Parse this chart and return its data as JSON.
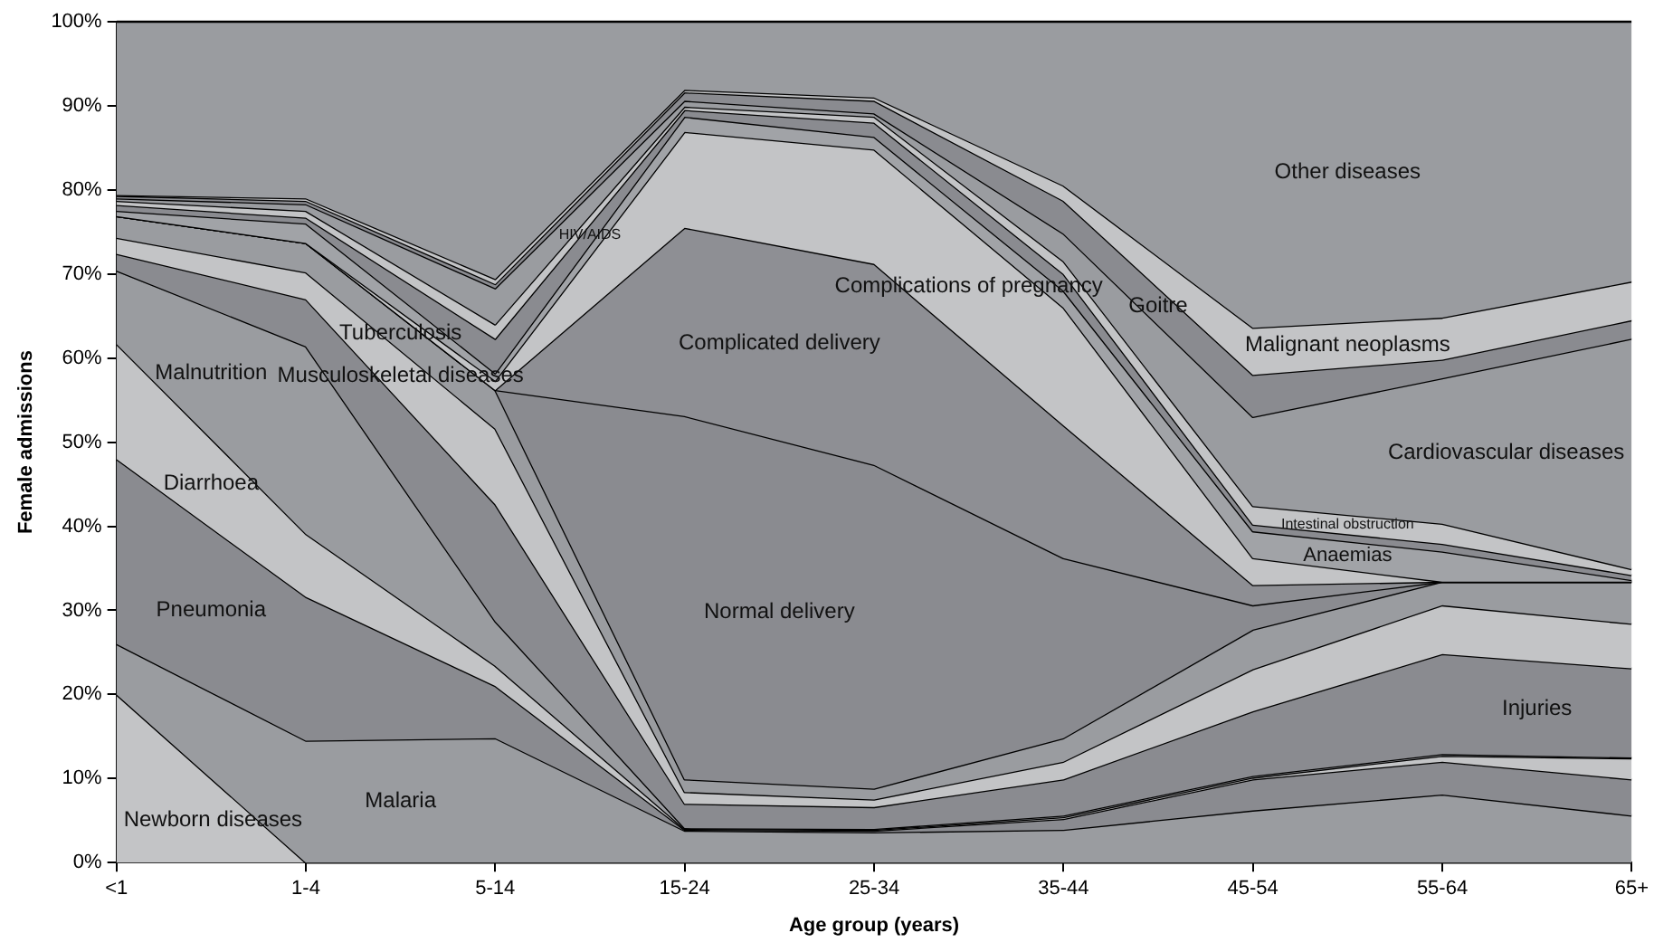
{
  "chart_data": {
    "type": "area",
    "stacked": true,
    "xlabel": "Age group (years)",
    "ylabel": "Female admissions",
    "categories": [
      "<1",
      "1-4",
      "5-14",
      "15-24",
      "25-34",
      "35-44",
      "45-54",
      "55-64",
      "65+"
    ],
    "ylim": [
      0,
      100
    ],
    "yticks": [
      {
        "value": 0,
        "label": "0%"
      },
      {
        "value": 10,
        "label": "10%"
      },
      {
        "value": 20,
        "label": "20%"
      },
      {
        "value": 30,
        "label": "30%"
      },
      {
        "value": 40,
        "label": "40%"
      },
      {
        "value": 50,
        "label": "50%"
      },
      {
        "value": 60,
        "label": "60%"
      },
      {
        "value": 70,
        "label": "70%"
      },
      {
        "value": 80,
        "label": "80%"
      },
      {
        "value": 90,
        "label": "90%"
      },
      {
        "value": 100,
        "label": "100%"
      }
    ],
    "grid": false,
    "legend": false,
    "series": [
      {
        "name": "Newborn diseases",
        "color": "#c3c4c6",
        "values": [
          20,
          0,
          0,
          0,
          0,
          0,
          0,
          0,
          0
        ]
      },
      {
        "name": "Malaria",
        "color": "#9a9ca0",
        "values": [
          6,
          14.5,
          14.8,
          3.8,
          3.6,
          3.9,
          6.2,
          8.1,
          5.6
        ]
      },
      {
        "name": "Pneumonia",
        "color": "#8a8b90",
        "values": [
          22,
          17.1,
          6.2,
          0.1,
          0.2,
          1.3,
          3.7,
          3.9,
          4.3
        ]
      },
      {
        "name": "Diarrhoea",
        "color": "#c3c4c6",
        "values": [
          13.7,
          7.5,
          2.4,
          0.1,
          0.1,
          0.2,
          0.2,
          0.7,
          2.5
        ]
      },
      {
        "name": "Malnutrition",
        "color": "#9a9ca0",
        "values": [
          8.7,
          22.3,
          5.3,
          0.1,
          0.1,
          0.2,
          0.2,
          0.2,
          0.1
        ]
      },
      {
        "name": "Injuries",
        "color": "#8a8b90",
        "values": [
          2,
          5.6,
          13.9,
          2.9,
          2.6,
          4.3,
          7.7,
          11.9,
          10.6
        ]
      },
      {
        "name": "Musculoskeletal diseases",
        "color": "#c3c4c6",
        "values": [
          1.9,
          3.2,
          9,
          1.4,
          0.9,
          2.1,
          5,
          5.8,
          5.3
        ]
      },
      {
        "name": "Tuberculosis",
        "color": "#9a9ca0",
        "values": [
          2.6,
          3.5,
          4.6,
          1.5,
          1.3,
          2.8,
          4.7,
          2.8,
          5
        ]
      },
      {
        "name": "Normal delivery",
        "color": "#8a8b90",
        "values": [
          0,
          0,
          0,
          43.2,
          38.5,
          21.4,
          2.9,
          0,
          0
        ]
      },
      {
        "name": "Complicated delivery",
        "color": "#8e8f94",
        "values": [
          0,
          0,
          0,
          22.4,
          23.9,
          15.8,
          2.4,
          0,
          0
        ]
      },
      {
        "name": "Complications of pregnancy",
        "color": "#c3c4c6",
        "values": [
          0,
          0,
          1.1,
          11.4,
          13.6,
          14,
          3.2,
          0,
          0
        ]
      },
      {
        "name": "Anaemias",
        "color": "#a1a3a7",
        "values": [
          0.6,
          2.3,
          0.9,
          1.8,
          1.5,
          2,
          3.2,
          3.6,
          0.2
        ]
      },
      {
        "name": "HIV/AIDS",
        "color": "#8a8b90",
        "values": [
          0.7,
          0.7,
          4.1,
          0.8,
          1.7,
          2,
          0.8,
          0.9,
          0.6
        ]
      },
      {
        "name": "Intestinal obstruction",
        "color": "#c3c4c6",
        "values": [
          0.5,
          0.8,
          1.7,
          0.4,
          0.7,
          1.5,
          2.2,
          2.4,
          0.7
        ]
      },
      {
        "name": "Cardiovascular diseases",
        "color": "#9a9ca0",
        "values": [
          0.3,
          0.8,
          4.3,
          0.7,
          0.4,
          3.3,
          10.6,
          17.3,
          27.4
        ]
      },
      {
        "name": "Goitre",
        "color": "#8a8b90",
        "values": [
          0.3,
          0.4,
          0.5,
          1,
          1.5,
          3.9,
          5,
          2.2,
          2.2
        ]
      },
      {
        "name": "Malignant neoplasms",
        "color": "#c3c4c6",
        "values": [
          0.1,
          0.3,
          0.6,
          0.3,
          0.4,
          1.8,
          5.6,
          5,
          4.6
        ]
      },
      {
        "name": "Other diseases",
        "color": "#9a9ca0",
        "values": [
          20.6,
          21,
          30.6,
          8.1,
          9,
          19.5,
          36.4,
          35.2,
          30.9
        ]
      }
    ]
  }
}
